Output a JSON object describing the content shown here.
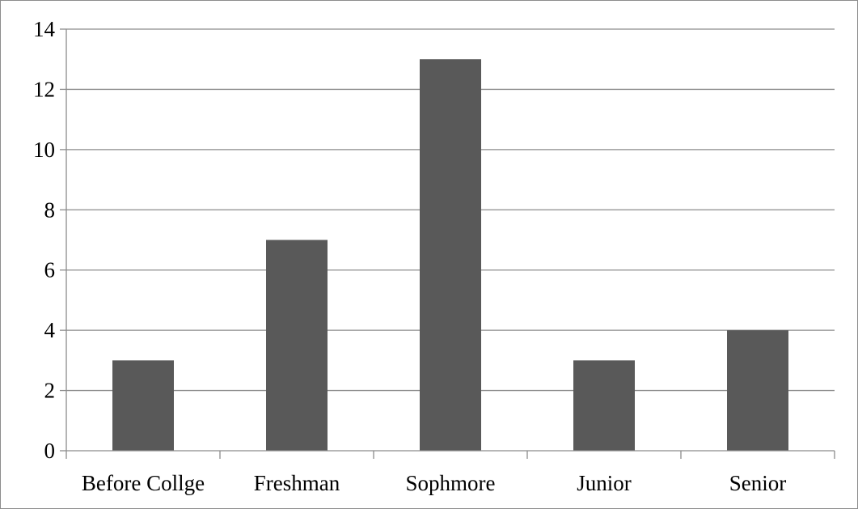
{
  "chart_data": {
    "type": "bar",
    "title": "",
    "xlabel": "",
    "ylabel": "",
    "categories": [
      "Before Collge",
      "Freshman",
      "Sophmore",
      "Junior",
      "Senior"
    ],
    "values": [
      3,
      7,
      13,
      3,
      4
    ],
    "ylim": [
      0,
      14
    ],
    "y_ticks": [
      0,
      2,
      4,
      6,
      8,
      10,
      12,
      14
    ],
    "y_tick_labels": [
      "0",
      "2",
      "4",
      "6",
      "8",
      "10",
      "12",
      "14"
    ],
    "grid": true,
    "legend": "none",
    "colors": {
      "bar": "#595959",
      "gridline": "#8c8c8c",
      "axis": "#8c8c8c",
      "text": "#000000",
      "background": "#ffffff"
    }
  }
}
